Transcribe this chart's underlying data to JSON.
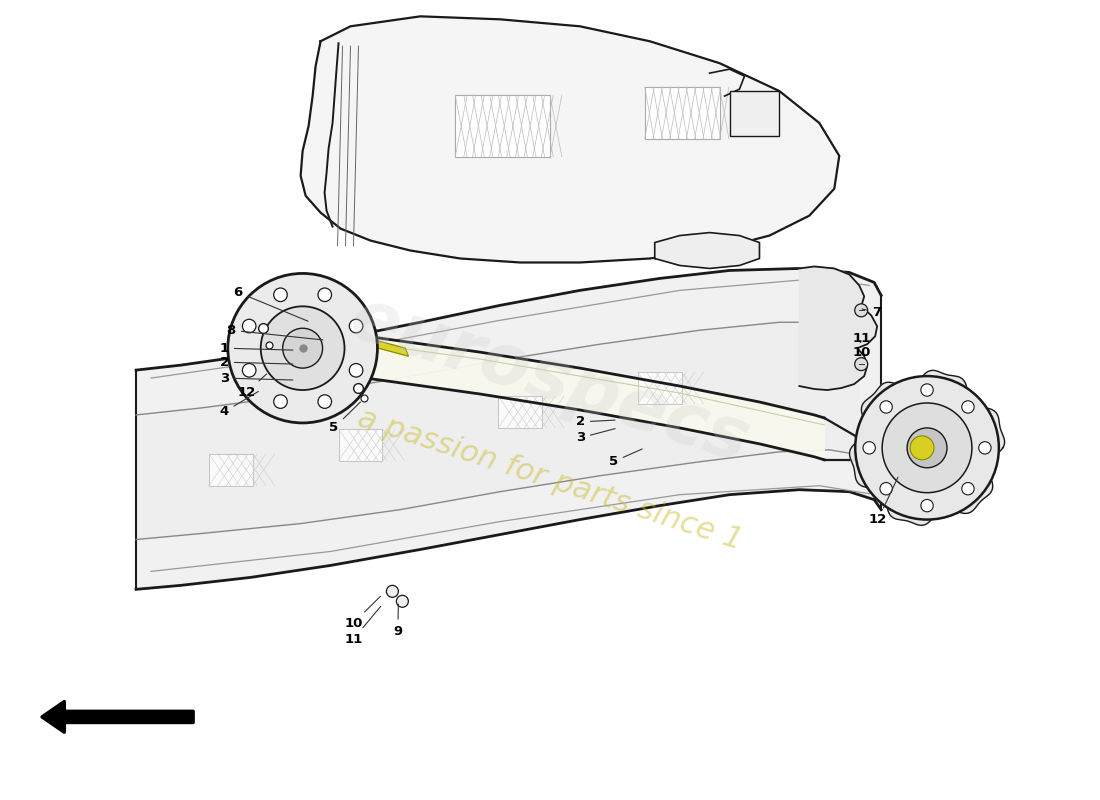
{
  "bg": "#ffffff",
  "lc": "#1a1a1a",
  "figw": 11.0,
  "figh": 8.0,
  "dpi": 100
}
